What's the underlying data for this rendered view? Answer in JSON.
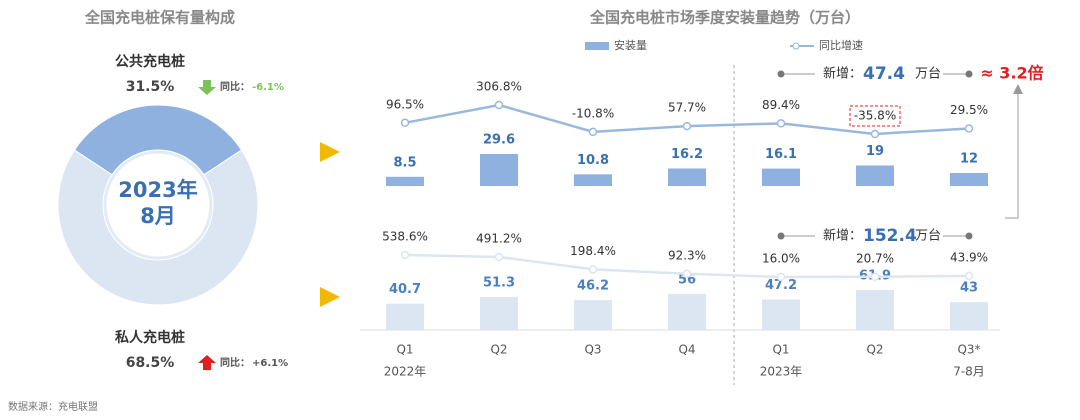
{
  "chart_data": [
    {
      "type": "pie",
      "title": "全国充电桩保有量构成",
      "center_label": [
        "2023年",
        "8月"
      ],
      "categories": [
        "公共充电桩",
        "私人充电桩"
      ],
      "values": [
        31.5,
        68.5
      ],
      "value_labels": [
        "31.5%",
        "68.5%"
      ],
      "colors": [
        "#8fb1e0",
        "#dce6f3"
      ],
      "yoy_prefix": "同比：",
      "yoy": [
        -6.1,
        6.1
      ],
      "yoy_labels": [
        "-6.1%",
        "+6.1%"
      ],
      "yoy_colors": [
        "#7cc25b",
        "#e02020"
      ]
    },
    {
      "type": "combo",
      "title": "全国充电桩市场季度安装量趋势（万台）",
      "categories": [
        "Q1",
        "Q2",
        "Q3",
        "Q4",
        "Q1",
        "Q2",
        "Q3*"
      ],
      "sublabels": [
        "2022年",
        null,
        null,
        null,
        "2023年",
        null,
        "7-8月"
      ],
      "series": [
        {
          "name": "安装量",
          "type": "bar",
          "color": "#8fb1e0",
          "values": [
            8.5,
            29.6,
            10.8,
            16.2,
            16.1,
            19,
            12
          ]
        },
        {
          "name": "同比增速",
          "type": "line",
          "color": "#9ab8dc",
          "values": [
            96.5,
            306.8,
            -10.8,
            57.7,
            89.4,
            -35.8,
            29.5
          ],
          "value_labels": [
            "96.5%",
            "306.8%",
            "-10.8%",
            "57.7%",
            "89.4%",
            "-35.8%",
            "29.5%"
          ]
        }
      ],
      "annotation": {
        "prefix": "新增：",
        "value": 47.4,
        "unit": "万台"
      },
      "ratio_label": "≈ 3.2倍",
      "highlight_index": 5
    },
    {
      "type": "combo",
      "series": [
        {
          "type": "bar",
          "color": "#dce6f3",
          "values": [
            40.7,
            51.3,
            46.2,
            56,
            47.2,
            61.9,
            43
          ]
        },
        {
          "type": "line",
          "color": "#dce6f3",
          "values": [
            538.6,
            491.2,
            198.4,
            92.3,
            16.0,
            20.7,
            43.9
          ],
          "value_labels": [
            "538.6%",
            "491.2%",
            "198.4%",
            "92.3%",
            "16.0%",
            "20.7%",
            "43.9%"
          ]
        }
      ],
      "annotation": {
        "prefix": "新增：",
        "value": 152.4,
        "unit": "万台"
      }
    }
  ],
  "source": "数据来源：充电联盟"
}
